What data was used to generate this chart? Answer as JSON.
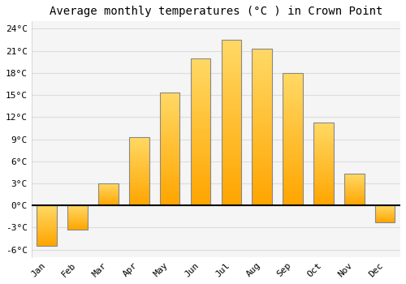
{
  "title": "Average monthly temperatures (°C ) in Crown Point",
  "months": [
    "Jan",
    "Feb",
    "Mar",
    "Apr",
    "May",
    "Jun",
    "Jul",
    "Aug",
    "Sep",
    "Oct",
    "Nov",
    "Dec"
  ],
  "temperatures": [
    -5.5,
    -3.3,
    3.0,
    9.3,
    15.3,
    20.0,
    22.5,
    21.3,
    18.0,
    11.3,
    4.3,
    -2.3
  ],
  "bar_color_bottom": "#FFA500",
  "bar_color_top": "#FFD966",
  "bar_edge_color": "#888888",
  "ylim": [
    -7,
    25
  ],
  "yticks": [
    -6,
    -3,
    0,
    3,
    6,
    9,
    12,
    15,
    18,
    21,
    24
  ],
  "ytick_labels": [
    "-6°C",
    "-3°C",
    "0°C",
    "3°C",
    "6°C",
    "9°C",
    "12°C",
    "15°C",
    "18°C",
    "21°C",
    "24°C"
  ],
  "background_color": "#ffffff",
  "plot_bg_color": "#f5f5f5",
  "grid_color": "#dddddd",
  "title_fontsize": 10,
  "tick_fontsize": 8,
  "font_family": "monospace",
  "bar_width": 0.65
}
